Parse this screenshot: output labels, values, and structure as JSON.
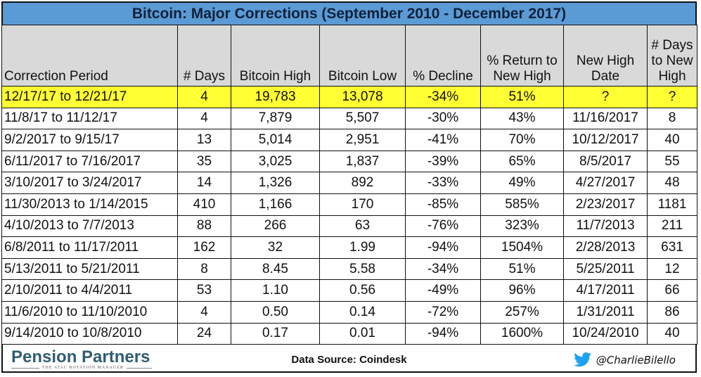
{
  "title": "Bitcoin: Major Corrections (September 2010 - December 2017)",
  "colors": {
    "title_bar": "#5b9bd5",
    "header_bg": "#d9d9d9",
    "highlight_row": "#ffff33",
    "twitter_blue": "#1da1f2",
    "logo_text": "#2f5d73"
  },
  "table": {
    "headers": [
      "Correction Period",
      "# Days",
      "Bitcoin High",
      "Bitcoin Low",
      "% Decline",
      "% Return to New High",
      "New High Date",
      "# Days to New High"
    ],
    "rows": [
      {
        "period": "12/17/17 to 12/21/17",
        "days": "4",
        "high": "19,783",
        "low": "13,078",
        "decline": "-34%",
        "return": "51%",
        "new_high_date": "?",
        "days_to_new_high": "?",
        "highlighted": true
      },
      {
        "period": "11/8/17 to 11/12/17",
        "days": "4",
        "high": "7,879",
        "low": "5,507",
        "decline": "-30%",
        "return": "43%",
        "new_high_date": "11/16/2017",
        "days_to_new_high": "8"
      },
      {
        "period": "9/2/2017 to 9/15/17",
        "days": "13",
        "high": "5,014",
        "low": "2,951",
        "decline": "-41%",
        "return": "70%",
        "new_high_date": "10/12/2017",
        "days_to_new_high": "40"
      },
      {
        "period": "6/11/2017 to 7/16/2017",
        "days": "35",
        "high": "3,025",
        "low": "1,837",
        "decline": "-39%",
        "return": "65%",
        "new_high_date": "8/5/2017",
        "days_to_new_high": "55"
      },
      {
        "period": "3/10/2017 to 3/24/2017",
        "days": "14",
        "high": "1,326",
        "low": "892",
        "decline": "-33%",
        "return": "49%",
        "new_high_date": "4/27/2017",
        "days_to_new_high": "48"
      },
      {
        "period": "11/30/2013 to 1/14/2015",
        "days": "410",
        "high": "1,166",
        "low": "170",
        "decline": "-85%",
        "return": "585%",
        "new_high_date": "2/23/2017",
        "days_to_new_high": "1181"
      },
      {
        "period": "4/10/2013 to 7/7/2013",
        "days": "88",
        "high": "266",
        "low": "63",
        "decline": "-76%",
        "return": "323%",
        "new_high_date": "11/7/2013",
        "days_to_new_high": "211"
      },
      {
        "period": "6/8/2011 to 11/17/2011",
        "days": "162",
        "high": "32",
        "low": "1.99",
        "decline": "-94%",
        "return": "1504%",
        "new_high_date": "2/28/2013",
        "days_to_new_high": "631"
      },
      {
        "period": "5/13/2011 to 5/21/2011",
        "days": "8",
        "high": "8.45",
        "low": "5.58",
        "decline": "-34%",
        "return": "51%",
        "new_high_date": "5/25/2011",
        "days_to_new_high": "12"
      },
      {
        "period": "2/10/2011 to 4/4/2011",
        "days": "53",
        "high": "1.10",
        "low": "0.56",
        "decline": "-49%",
        "return": "96%",
        "new_high_date": "4/17/2011",
        "days_to_new_high": "66"
      },
      {
        "period": "11/6/2010 to 11/10/2010",
        "days": "4",
        "high": "0.50",
        "low": "0.14",
        "decline": "-72%",
        "return": "257%",
        "new_high_date": "1/31/2011",
        "days_to_new_high": "86"
      },
      {
        "period": "9/14/2010 to 10/8/2010",
        "days": "24",
        "high": "0.17",
        "low": "0.01",
        "decline": "-94%",
        "return": "1600%",
        "new_high_date": "10/24/2010",
        "days_to_new_high": "40"
      }
    ]
  },
  "footer": {
    "logo_name": "Pension Partners",
    "logo_tagline": "THE ATAC ROTATION MANAGER",
    "source": "Data Source: Coindesk",
    "twitter_icon": "twitter-bird-icon",
    "twitter_handle": "@CharlieBilello"
  }
}
